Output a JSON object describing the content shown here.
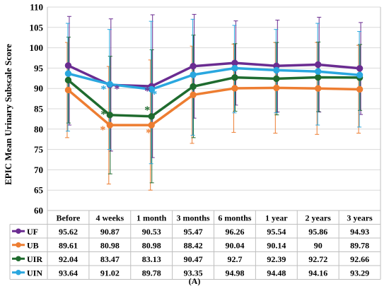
{
  "chart_data": {
    "type": "line",
    "ylabel": "EPIC Mean Urinary Subscale Score",
    "caption": "(A)",
    "ylim": [
      60,
      110
    ],
    "yticks": [
      60,
      65,
      70,
      75,
      80,
      85,
      90,
      95,
      100,
      105,
      110
    ],
    "categories": [
      "Before",
      "4 weeks",
      "1 month",
      "3 months",
      "6 months",
      "1 year",
      "2 years",
      "3 years"
    ],
    "grid": "horizontal",
    "legend": "data-table",
    "series": [
      {
        "name": "UF",
        "color": "#6a2c91",
        "values": [
          95.62,
          90.87,
          90.53,
          95.47,
          96.26,
          95.54,
          95.86,
          94.93
        ],
        "labels": [
          "95.62",
          "90.87",
          "90.53",
          "95.47",
          "96.26",
          "95.54",
          "95.86",
          "94.93"
        ],
        "error_low": [
          81.0,
          74.6,
          73.0,
          82.7,
          85.9,
          84.2,
          84.2,
          83.6
        ],
        "error_high": [
          107.7,
          107.1,
          108.1,
          108.2,
          106.6,
          106.8,
          107.5,
          106.2
        ]
      },
      {
        "name": "UB",
        "color": "#ed7d31",
        "values": [
          89.61,
          80.98,
          80.98,
          88.42,
          90.04,
          90.14,
          90,
          89.78
        ],
        "labels": [
          "89.61",
          "80.98",
          "80.98",
          "88.42",
          "90.04",
          "90.14",
          "90",
          "89.78"
        ],
        "error_low": [
          77.9,
          66.5,
          65.0,
          76.5,
          79.2,
          79.0,
          78.7,
          79.0
        ],
        "error_high": [
          101.3,
          95.4,
          97.0,
          100.4,
          100.9,
          101.3,
          101.3,
          100.6
        ]
      },
      {
        "name": "UIR",
        "color": "#1f6b2e",
        "values": [
          92.04,
          83.47,
          83.13,
          90.47,
          92.7,
          92.39,
          92.72,
          92.66
        ],
        "labels": [
          "92.04",
          "83.47",
          "83.13",
          "90.47",
          "92.7",
          "92.39",
          "92.72",
          "92.66"
        ],
        "error_low": [
          81.5,
          69.0,
          66.8,
          77.9,
          84.4,
          83.5,
          84.3,
          84.6
        ],
        "error_high": [
          102.6,
          97.9,
          99.5,
          103.1,
          101.0,
          101.3,
          101.4,
          100.8
        ]
      },
      {
        "name": "UIN",
        "color": "#2aa7df",
        "values": [
          93.64,
          91.02,
          89.78,
          93.35,
          94.98,
          94.48,
          94.16,
          93.29
        ],
        "labels": [
          "93.64",
          "91.02",
          "89.78",
          "93.35",
          "94.98",
          "94.48",
          "94.16",
          "93.29"
        ],
        "error_low": [
          79.5,
          75.0,
          71.5,
          78.5,
          84.0,
          84.0,
          81.0,
          80.5
        ],
        "error_high": [
          106.0,
          104.5,
          106.5,
          107.0,
          105.5,
          104.5,
          106.0,
          104.0
        ]
      }
    ],
    "annotations": [
      {
        "text": "*",
        "x": "4 weeks",
        "series": "UF"
      },
      {
        "text": "*",
        "x": "4 weeks",
        "series": "UB"
      },
      {
        "text": "*",
        "x": "4 weeks",
        "series": "UIR"
      },
      {
        "text": "*",
        "x": "4 weeks",
        "series": "UIN"
      },
      {
        "text": "*",
        "x": "1 month",
        "series": "UF"
      },
      {
        "text": "*",
        "x": "1 month",
        "series": "UB"
      },
      {
        "text": "*",
        "x": "1 month",
        "series": "UIR"
      },
      {
        "text": "*",
        "x": "1 month",
        "series": "UIN"
      }
    ]
  }
}
